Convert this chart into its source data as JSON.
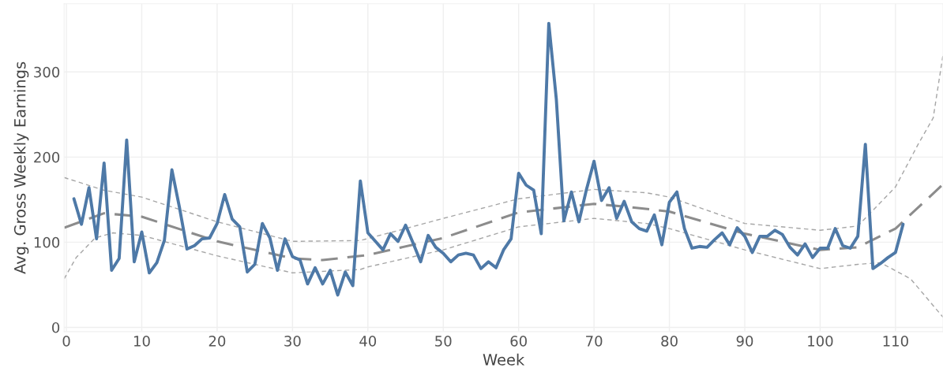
{
  "chart_data": {
    "type": "line",
    "xlabel": "Week",
    "ylabel": "Avg. Gross Weekly Earnings",
    "xlim": [
      -0.3,
      116.3
    ],
    "ylim": [
      -5,
      380
    ],
    "xticks": [
      0,
      10,
      20,
      30,
      40,
      50,
      60,
      70,
      80,
      90,
      100,
      110
    ],
    "yticks": [
      0,
      100,
      200,
      300
    ],
    "grid": true,
    "series": [
      {
        "color": "#a6a6a6",
        "line_style": "dashed",
        "x": [
          -0.3,
          1.3,
          3.8,
          6.2,
          10,
          20,
          30,
          39,
          40,
          50,
          60,
          70,
          77,
          80,
          90,
          100,
          105,
          108,
          112,
          116.3
        ],
        "values": [
          57,
          82,
          105,
          111,
          108,
          84,
          64,
          68,
          71,
          91,
          118,
          128,
          122,
          116,
          91,
          69,
          74,
          76,
          57,
          12
        ]
      },
      {
        "color": "#a6a6a6",
        "line_style": "dashed",
        "x": [
          -0.3,
          5,
          10,
          20,
          30,
          39,
          45,
          50,
          60,
          70,
          77,
          80,
          90,
          100,
          105,
          110,
          113,
          115,
          116.3
        ],
        "values": [
          176,
          161,
          153,
          124,
          101,
          102,
          116,
          128,
          151,
          162,
          158,
          153,
          122,
          114,
          119,
          165,
          215,
          246,
          320
        ]
      },
      {
        "color": "#8c8c8c",
        "line_style": "dashed",
        "x": [
          -0.3,
          5,
          10,
          20,
          30,
          34,
          40,
          50,
          60,
          70,
          75,
          80,
          90,
          100,
          105,
          110,
          116.3
        ],
        "values": [
          117,
          134,
          130,
          101,
          81,
          79,
          85,
          105,
          135,
          145,
          141,
          136,
          110,
          91,
          94,
          116,
          168
        ]
      },
      {
        "color": "#4e79a7",
        "line_style": "solid",
        "x": [
          1,
          2,
          3,
          4,
          5,
          6,
          7,
          8,
          9,
          10,
          11,
          12,
          13,
          14,
          15,
          16,
          17,
          18,
          19,
          20,
          21,
          22,
          23,
          24,
          25,
          26,
          27,
          28,
          29,
          30,
          31,
          32,
          33,
          34,
          35,
          36,
          37,
          38,
          39,
          40,
          41,
          42,
          43,
          44,
          45,
          46,
          47,
          48,
          49,
          50,
          51,
          52,
          53,
          54,
          55,
          56,
          57,
          58,
          59,
          60,
          61,
          62,
          63,
          64,
          65,
          66,
          67,
          68,
          69,
          70,
          71,
          72,
          73,
          74,
          75,
          76,
          77,
          78,
          79,
          80,
          81,
          82,
          83,
          84,
          85,
          86,
          87,
          88,
          89,
          90,
          91,
          92,
          93,
          94,
          95,
          96,
          97,
          98,
          99,
          100,
          101,
          102,
          103,
          104,
          105,
          106,
          107,
          108,
          109,
          110,
          111
        ],
        "values": [
          151,
          121,
          164,
          104,
          193,
          67,
          81,
          220,
          77,
          112,
          64,
          76,
          102,
          185,
          141,
          92,
          96,
          104,
          105,
          122,
          156,
          127,
          118,
          65,
          74,
          122,
          105,
          67,
          104,
          83,
          79,
          51,
          70,
          51,
          67,
          38,
          65,
          49,
          172,
          111,
          101,
          91,
          110,
          101,
          120,
          99,
          77,
          108,
          94,
          87,
          77,
          85,
          87,
          85,
          69,
          77,
          70,
          91,
          104,
          181,
          167,
          161,
          110,
          357,
          268,
          125,
          159,
          124,
          162,
          195,
          149,
          164,
          128,
          148,
          124,
          116,
          113,
          132,
          97,
          147,
          159,
          116,
          93,
          95,
          94,
          103,
          111,
          97,
          117,
          107,
          88,
          107,
          107,
          114,
          109,
          94,
          85,
          98,
          82,
          93,
          93,
          116,
          96,
          93,
          107,
          215,
          69,
          75,
          82,
          88,
          121
        ]
      }
    ]
  }
}
